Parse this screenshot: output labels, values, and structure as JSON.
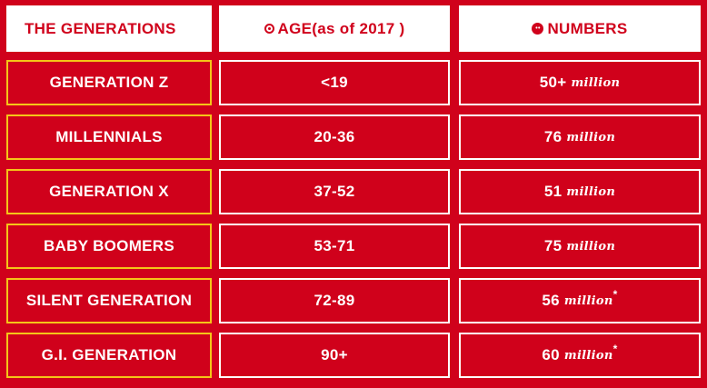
{
  "header": {
    "col1": "THE GENERATIONS",
    "col2": "AGE(as of  2017 )",
    "col3": "NUMBERS",
    "col2_icon": "clock-icon",
    "col3_icon": "people-icon"
  },
  "colors": {
    "background": "#d0011b",
    "header_bg": "#ffffff",
    "generation_border": "#f5c518",
    "cell_border": "#ffffff"
  },
  "unit": "million",
  "rows": [
    {
      "generation": "GENERATION Z",
      "age": "<19",
      "number": "50+",
      "asterisk": ""
    },
    {
      "generation": "MILLENNIALS",
      "age": "20-36",
      "number": "76",
      "asterisk": ""
    },
    {
      "generation": "GENERATION X",
      "age": "37-52",
      "number": "51",
      "asterisk": ""
    },
    {
      "generation": "BABY BOOMERS",
      "age": "53-71",
      "number": "75",
      "asterisk": ""
    },
    {
      "generation": "SILENT GENERATION",
      "age": "72-89",
      "number": "56",
      "asterisk": "*"
    },
    {
      "generation": "G.I. GENERATION",
      "age": "90+",
      "number": "60",
      "asterisk": "*"
    }
  ]
}
